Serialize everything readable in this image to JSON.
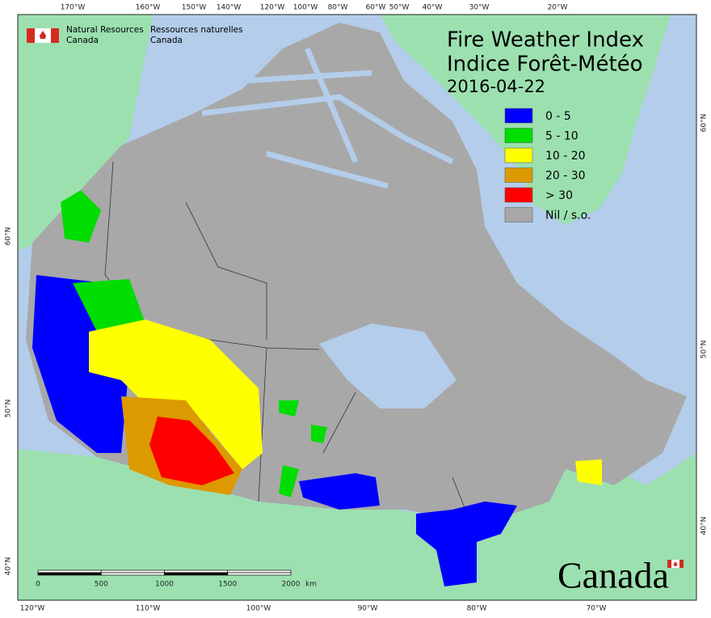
{
  "header": {
    "agency_en": [
      "Natural Resources",
      "Canada"
    ],
    "agency_fr": [
      "Ressources naturelles",
      "Canada"
    ]
  },
  "title": [
    "Fire Weather Index",
    "Indice Forêt-Météo"
  ],
  "date": "2016-04-22",
  "legend": [
    {
      "label": "0 - 5",
      "color": "#0000ff"
    },
    {
      "label": "5 - 10",
      "color": "#00dd00"
    },
    {
      "label": "10 - 20",
      "color": "#ffff00"
    },
    {
      "label": "20 - 30",
      "color": "#dd9900"
    },
    {
      "label": "> 30",
      "color": "#ff0000"
    },
    {
      "label": "Nil / s.o.",
      "color": "#a8a8a8"
    }
  ],
  "top_labels": [
    "170°W",
    "160°W",
    "150°W",
    "140°W",
    "120°W",
    "100°W",
    "80°W",
    "60°W",
    "50°W",
    "40°W",
    "30°W",
    "20°W"
  ],
  "bottom_labels": [
    "120°W",
    "110°W",
    "100°W",
    "90°W",
    "80°W",
    "70°W"
  ],
  "left_labels": [
    "60°N",
    "50°N",
    "40°N"
  ],
  "right_labels": [
    "60°N",
    "50°N",
    "40°N"
  ],
  "scale": {
    "ticks": [
      "0",
      "500",
      "1000",
      "1500",
      "2000"
    ],
    "unit": "km"
  },
  "wordmark": "Canada"
}
